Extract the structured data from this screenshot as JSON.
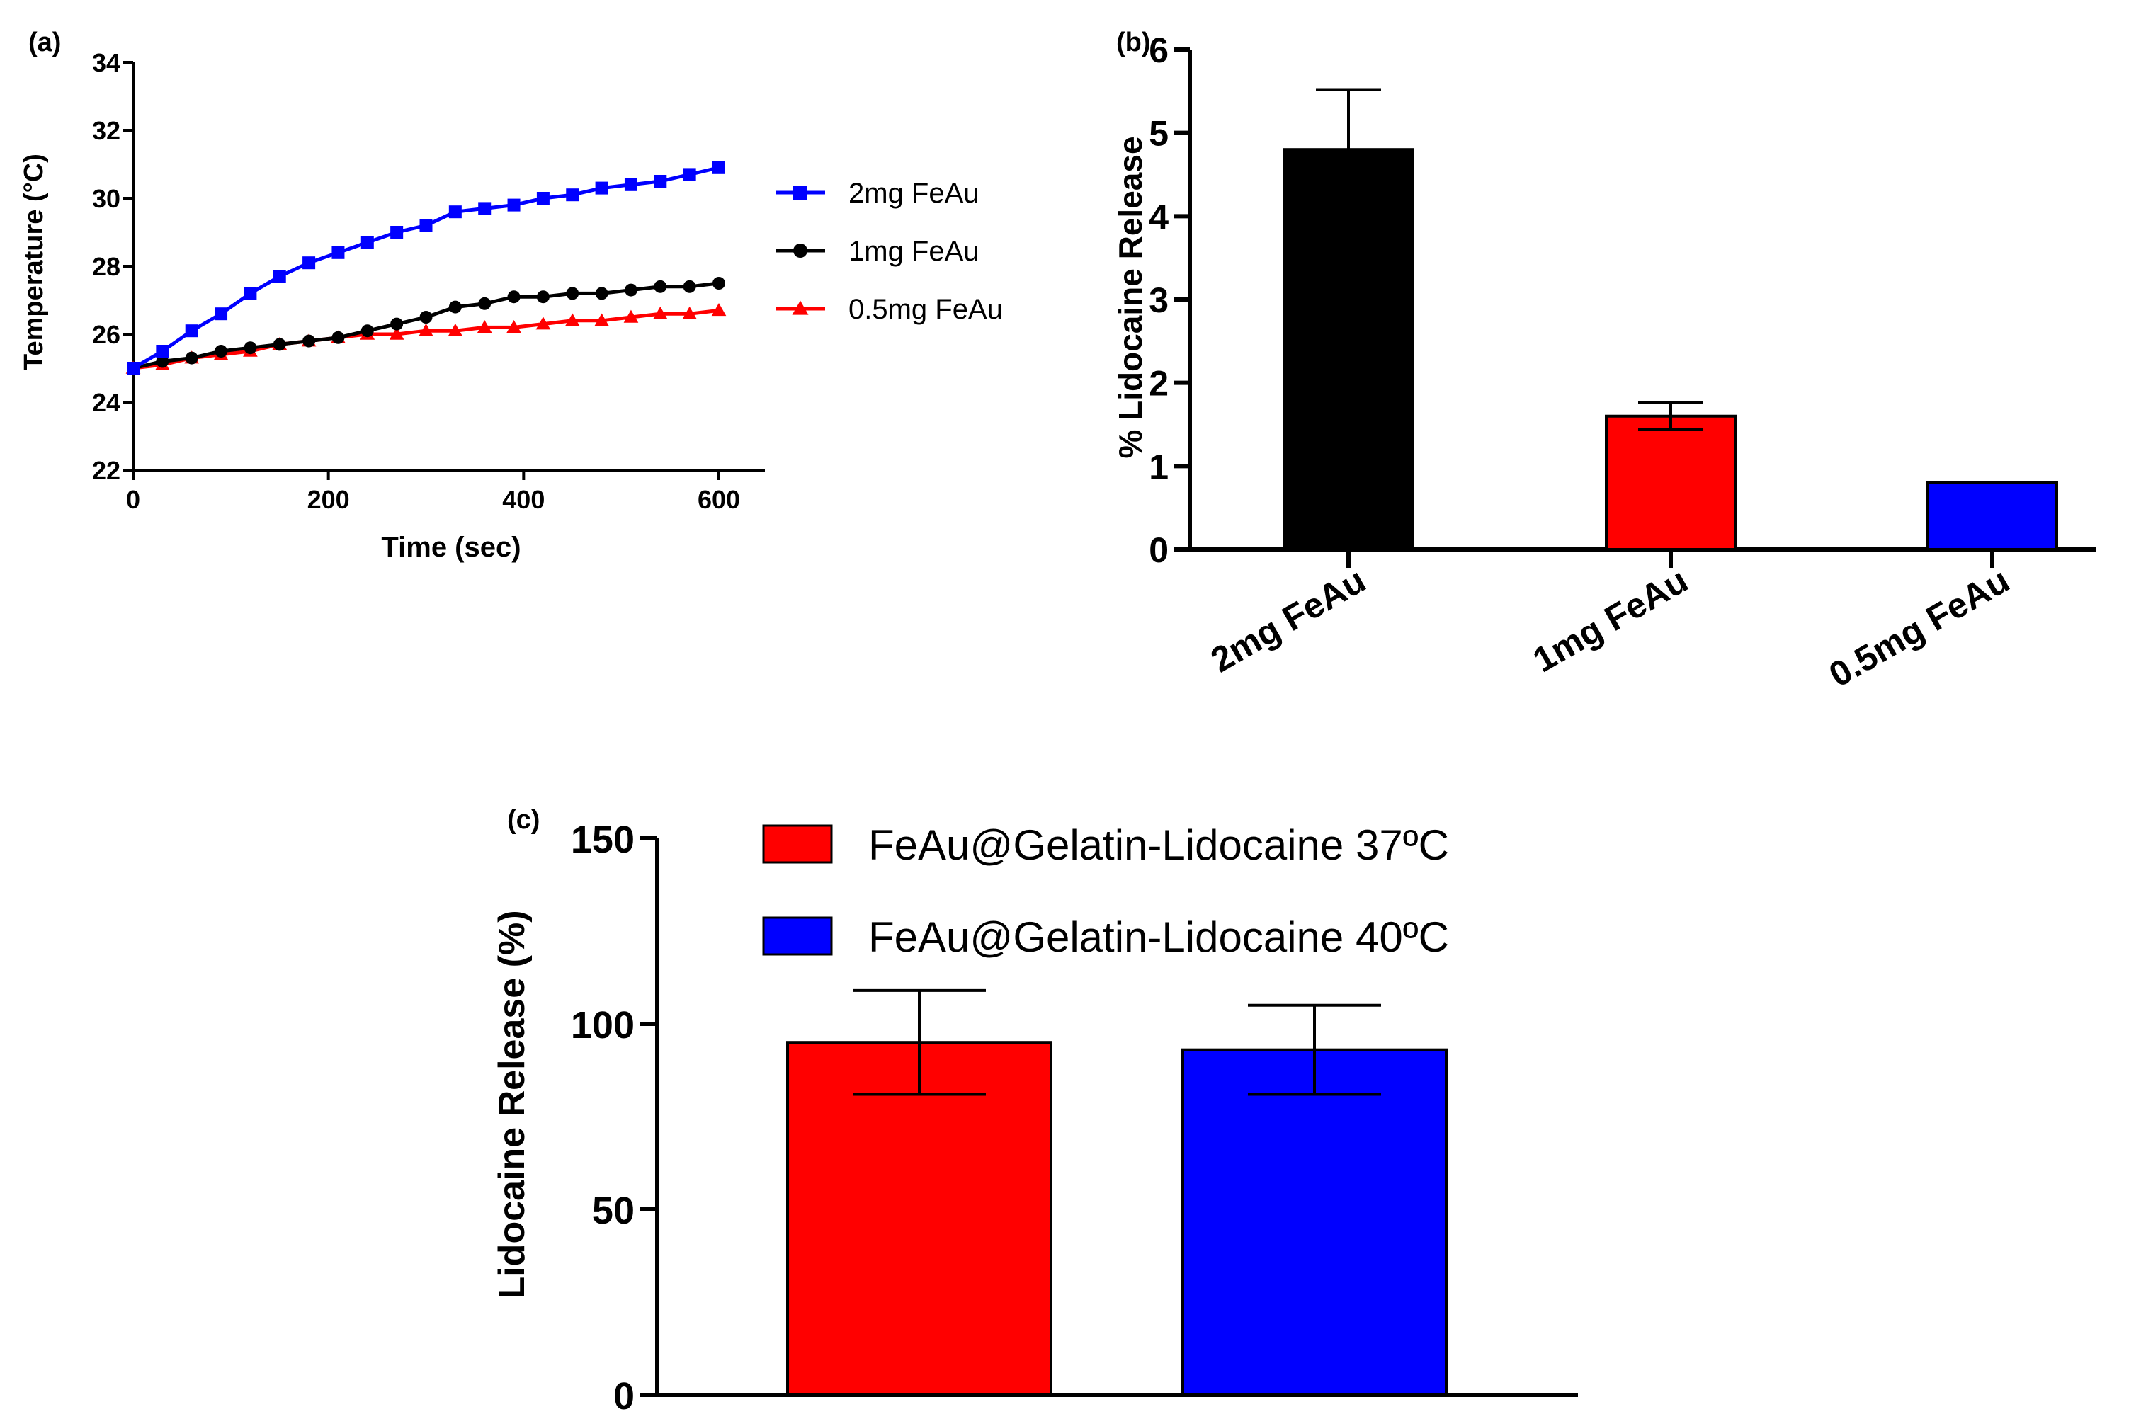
{
  "chart_data": [
    {
      "panel_label": "(a)",
      "type": "line",
      "xlabel": "Time (sec)",
      "ylabel": "Temperature (°C)",
      "xlim": [
        0,
        600
      ],
      "ylim": [
        22,
        34
      ],
      "xticks": [
        0,
        200,
        400,
        600
      ],
      "yticks": [
        22,
        24,
        26,
        28,
        30,
        32,
        34
      ],
      "grid": false,
      "legend_position": "right",
      "x": [
        0,
        30,
        60,
        90,
        120,
        150,
        180,
        210,
        240,
        270,
        300,
        330,
        360,
        390,
        420,
        450,
        480,
        510,
        540,
        570,
        600
      ],
      "series": [
        {
          "name": "2mg FeAu",
          "color": "#0000ff",
          "marker": "square",
          "values": [
            25.0,
            25.5,
            26.1,
            26.6,
            27.2,
            27.7,
            28.1,
            28.4,
            28.7,
            29.0,
            29.2,
            29.6,
            29.7,
            29.8,
            30.0,
            30.1,
            30.3,
            30.4,
            30.5,
            30.7,
            30.9
          ]
        },
        {
          "name": "1mg FeAu",
          "color": "#000000",
          "marker": "circle",
          "values": [
            25.0,
            25.2,
            25.3,
            25.5,
            25.6,
            25.7,
            25.8,
            25.9,
            26.1,
            26.3,
            26.5,
            26.8,
            26.9,
            27.1,
            27.1,
            27.2,
            27.2,
            27.3,
            27.4,
            27.4,
            27.5
          ]
        },
        {
          "name": "0.5mg FeAu",
          "color": "#ff0000",
          "marker": "triangle",
          "values": [
            25.0,
            25.1,
            25.3,
            25.4,
            25.5,
            25.7,
            25.8,
            25.9,
            26.0,
            26.0,
            26.1,
            26.1,
            26.2,
            26.2,
            26.3,
            26.4,
            26.4,
            26.5,
            26.6,
            26.6,
            26.7
          ]
        }
      ]
    },
    {
      "panel_label": "(b)",
      "type": "bar",
      "xlabel": "",
      "ylabel": "% Lidocaine Release",
      "ylim": [
        0,
        6
      ],
      "yticks": [
        0,
        1,
        2,
        3,
        4,
        5,
        6
      ],
      "categories": [
        "2mg FeAu",
        "1mg FeAu",
        "0.5mg FeAu"
      ],
      "values": [
        4.8,
        1.6,
        0.8
      ],
      "errors": [
        0.72,
        0.16,
        0.0
      ],
      "colors": [
        "#000000",
        "#ff0000",
        "#0000ff"
      ]
    },
    {
      "panel_label": "(c)",
      "type": "bar",
      "xlabel": "",
      "ylabel": "Lidocaine Release  (%)",
      "ylim": [
        0,
        150
      ],
      "yticks": [
        0,
        50,
        100,
        150
      ],
      "legend_position": "top",
      "series": [
        {
          "name": "FeAu@Gelatin-Lidocaine 37ºC",
          "color": "#ff0000",
          "value": 95,
          "error": 14
        },
        {
          "name": "FeAu@Gelatin-Lidocaine 40ºC",
          "color": "#0000ff",
          "value": 93,
          "error": 12
        }
      ]
    }
  ]
}
